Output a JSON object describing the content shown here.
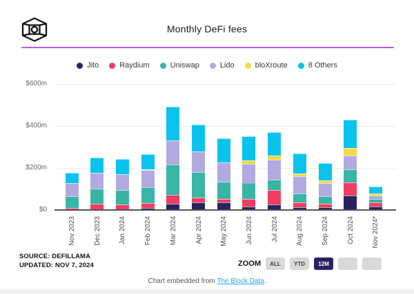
{
  "header": {
    "title": "Monthly DeFi fees",
    "logo": "the-block-logo"
  },
  "colors": {
    "divider_purple": "#b35bef",
    "selected_zoom_bg": "#2a2263",
    "link_blue": "#2e9fe6",
    "axis": "#515459",
    "grid": "#ececec"
  },
  "footer": {
    "source_line1": "SOURCE: DEFILLAMA",
    "source_line2": "UPDATED: NOV 7, 2024",
    "zoom_label": "ZOOM",
    "zoom_buttons": [
      {
        "label": "ALL",
        "selected": false
      },
      {
        "label": "YTD",
        "selected": false
      },
      {
        "label": "12M",
        "selected": true
      },
      {
        "label": "",
        "selected": false
      },
      {
        "label": "",
        "selected": false
      }
    ],
    "embed_prefix": "Chart embedded from ",
    "embed_link": "The Block Data",
    "embed_suffix": "."
  },
  "chart_data": {
    "type": "bar",
    "stacked": true,
    "title": "Monthly DeFi fees",
    "unit": "$m",
    "grid": true,
    "legend_position": "top",
    "categories": [
      "Nov 2023",
      "Dec 2023",
      "Jan 2024",
      "Feb 2024",
      "Mar 2024",
      "Apr 2024",
      "May 2024",
      "Jun 2024",
      "Jul 2024",
      "Aug 2024",
      "Sep 2024",
      "Oct 2024",
      "Nov 2024*"
    ],
    "series": [
      {
        "name": "Jito",
        "color": "#29235c",
        "values": [
          2,
          3,
          3,
          9,
          28,
          35,
          36,
          16,
          27,
          14,
          13,
          69,
          16
        ]
      },
      {
        "name": "Raydium",
        "color": "#ef3e62",
        "values": [
          7,
          27,
          22,
          23,
          44,
          24,
          16,
          38,
          69,
          22,
          17,
          62,
          20
        ]
      },
      {
        "name": "Uniswap",
        "color": "#3ab4a4",
        "values": [
          57,
          73,
          70,
          75,
          144,
          122,
          82,
          76,
          49,
          43,
          35,
          63,
          16
        ]
      },
      {
        "name": "Lido",
        "color": "#b1aae0",
        "values": [
          61,
          74,
          76,
          85,
          115,
          98,
          93,
          90,
          93,
          81,
          63,
          65,
          16
        ]
      },
      {
        "name": "bloXroute",
        "color": "#f9d841",
        "values": [
          0,
          0,
          0,
          0,
          0,
          0,
          0,
          16,
          20,
          15,
          13,
          35,
          10
        ]
      },
      {
        "name": "8 Others",
        "color": "#0ac3ed",
        "values": [
          50,
          73,
          71,
          74,
          160,
          128,
          115,
          114,
          111,
          94,
          81,
          136,
          33
        ]
      }
    ],
    "totals": [
      177,
      250,
      242,
      266,
      491,
      407,
      342,
      350,
      369,
      269,
      222,
      430,
      111
    ],
    "yticks": [
      {
        "label": "$600m",
        "value": 600
      },
      {
        "label": "$400m",
        "value": 400
      },
      {
        "label": "$200m",
        "value": 200
      },
      {
        "label": "$0",
        "value": 0
      }
    ],
    "ylim": [
      0,
      640
    ]
  }
}
